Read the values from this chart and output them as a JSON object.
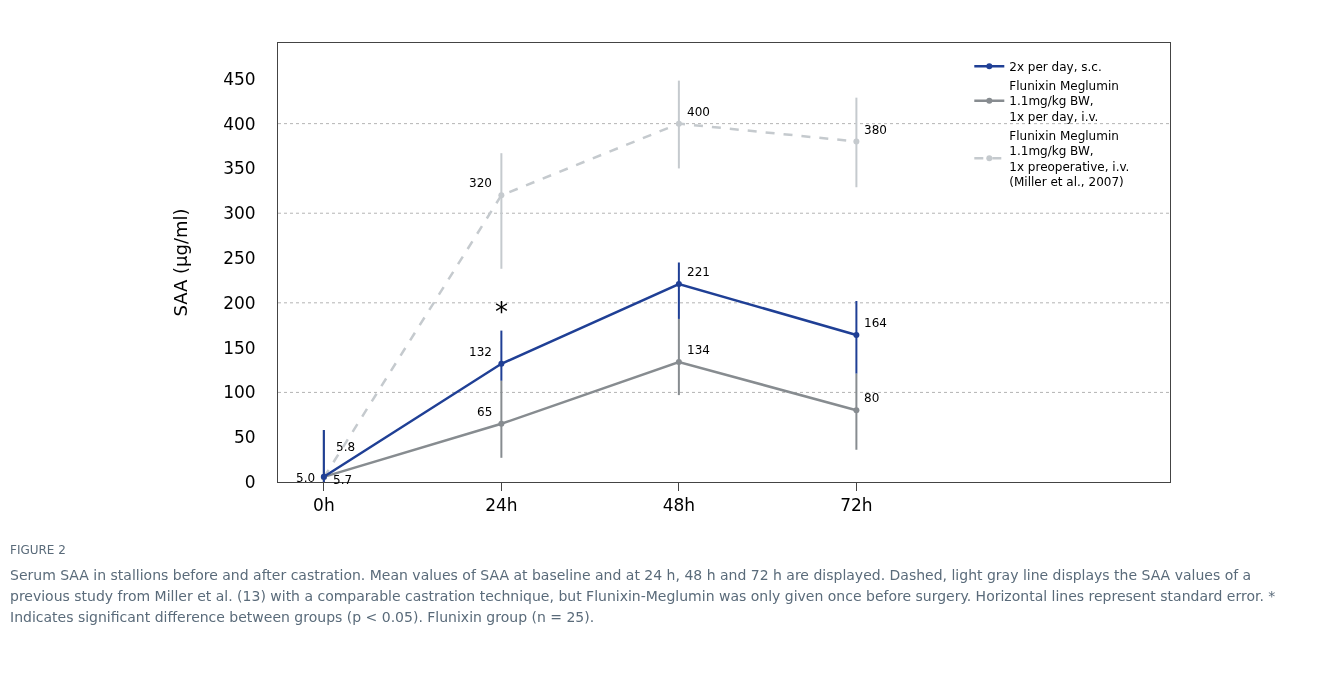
{
  "chart_data": {
    "type": "line",
    "title": "FIGURE 2",
    "ylabel": "SAA (µg/ml)",
    "x": [
      0,
      24,
      48,
      72
    ],
    "xlim": [
      -6.2,
      114.4
    ],
    "xticks": [
      {
        "value": 0,
        "label": "0h"
      },
      {
        "value": 24,
        "label": "24h"
      },
      {
        "value": 48,
        "label": "48h"
      },
      {
        "value": 72,
        "label": "72h"
      }
    ],
    "ylim": [
      0,
      490
    ],
    "yticks": [
      0,
      50,
      100,
      150,
      200,
      250,
      300,
      350,
      400,
      450
    ],
    "grid": false,
    "legend": "top right",
    "marker": "circle",
    "ref_lines": [
      {
        "axis": "y",
        "value": 100,
        "line_style": "dotted",
        "color": "#b4b4b4"
      },
      {
        "axis": "y",
        "value": 200,
        "line_style": "dotted",
        "color": "#b4b4b4"
      },
      {
        "axis": "y",
        "value": 300,
        "line_style": "dotted",
        "color": "#b4b4b4"
      },
      {
        "axis": "y",
        "value": 400,
        "line_style": "dotted",
        "color": "#b4b4b4"
      }
    ],
    "series": [
      {
        "name": "Flunixin Meglumin\n1.1mg/kg BW,\n1x preoperative, i.v.\n(Miller et al., 2007)",
        "color": "#c5cace",
        "line_style": "dashed",
        "values": [
          5.0,
          320,
          400,
          380
        ],
        "value_labels": [
          "5.0",
          "320",
          "400",
          "380"
        ],
        "errors": [
          [
            0,
            58
          ],
          [
            238,
            367
          ],
          [
            350,
            448
          ],
          [
            329,
            429
          ]
        ]
      },
      {
        "name": "Flunixin Meglumin\n1.1mg/kg BW,\n1x per day, i.v.",
        "color": "#878c90",
        "line_style": "solid",
        "values": [
          5.7,
          65,
          134,
          80
        ],
        "value_labels": [
          "5.7",
          "65",
          "134",
          "80"
        ],
        "errors": [
          [
            0,
            58
          ],
          [
            27,
            113
          ],
          [
            97,
            182
          ],
          [
            36,
            121
          ]
        ]
      },
      {
        "name": "2x per day, s.c.",
        "color": "#1f3f95",
        "line_style": "solid",
        "values": [
          5.8,
          132,
          221,
          164
        ],
        "value_labels": [
          "5.8",
          "132",
          "221",
          "164"
        ],
        "errors": [
          [
            0,
            58
          ],
          [
            113,
            169
          ],
          [
            182,
            245
          ],
          [
            121,
            202
          ]
        ]
      }
    ],
    "annotations": [
      {
        "text": "*",
        "x": 24,
        "y": 169
      },
      "Serum SAA in stallions before and after castration. Mean values of SAA at baseline and at 24 h, 48 h and 72 h are displayed. Dashed, light gray line displays the SAA values of a previous study from Miller et al. (13) with a comparable castration technique, but Flunixin-Meglumin was only given once before surgery. Horizontal lines represent standard error. * Indicates significant difference between groups (p < 0.05). Flunixin group (n = 25)."
    ]
  }
}
